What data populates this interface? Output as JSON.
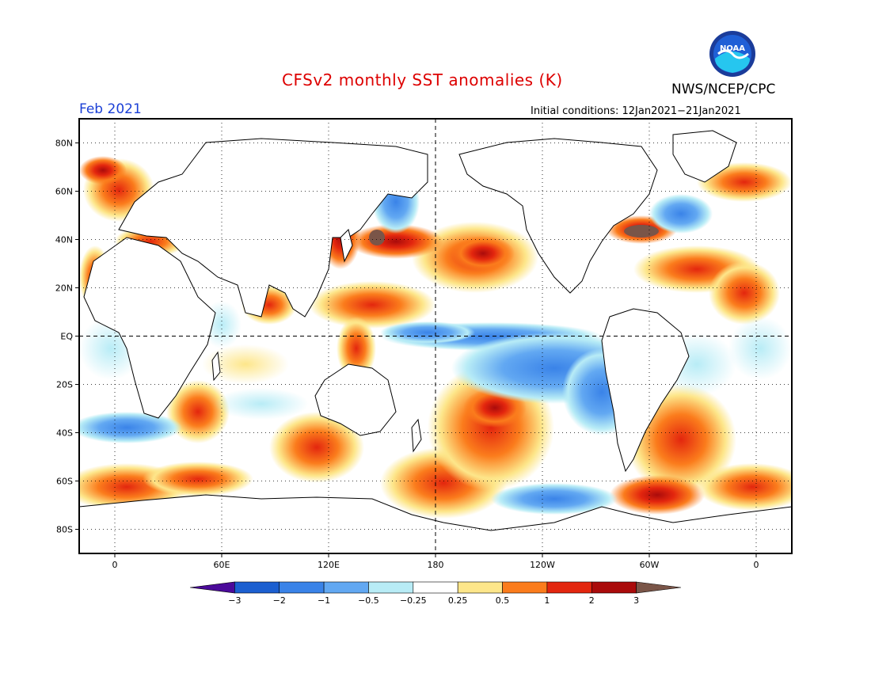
{
  "title": "CFSv2 monthly SST anomalies (K)",
  "agency": "NWS/NCEP/CPC",
  "logo": {
    "icon": "noaa-logo-icon",
    "text": "NOAA"
  },
  "valid_month": "Feb 2021",
  "initial_conditions": "Initial conditions: 12Jan2021−21Jan2021",
  "map": {
    "lat_labels": [
      "80N",
      "60N",
      "40N",
      "20N",
      "EQ",
      "20S",
      "40S",
      "60S",
      "80S"
    ],
    "lat_values": [
      80,
      60,
      40,
      20,
      0,
      -20,
      -40,
      -60,
      -80
    ],
    "lon_labels": [
      "0",
      "60E",
      "120E",
      "180",
      "120W",
      "60W",
      "0"
    ],
    "lon_values": [
      0,
      60,
      120,
      180,
      240,
      300,
      360
    ],
    "lon_range": [
      -20,
      380
    ],
    "lat_range": [
      -90,
      90
    ],
    "gridlines": "dotted",
    "reference_lines": [
      "equator",
      "dateline"
    ]
  },
  "colorbar": {
    "labels": [
      "−3",
      "−2",
      "−1",
      "−0.5",
      "−0.25",
      "0.25",
      "0.5",
      "1",
      "2",
      "3"
    ],
    "colors": [
      "#4b0a9a",
      "#1c5fd0",
      "#3a83e8",
      "#62a8f2",
      "#b8ecf6",
      "#ffffff",
      "#fde68a",
      "#fb7c1c",
      "#e3260e",
      "#aa0b0b",
      "#7a5548"
    ]
  }
}
